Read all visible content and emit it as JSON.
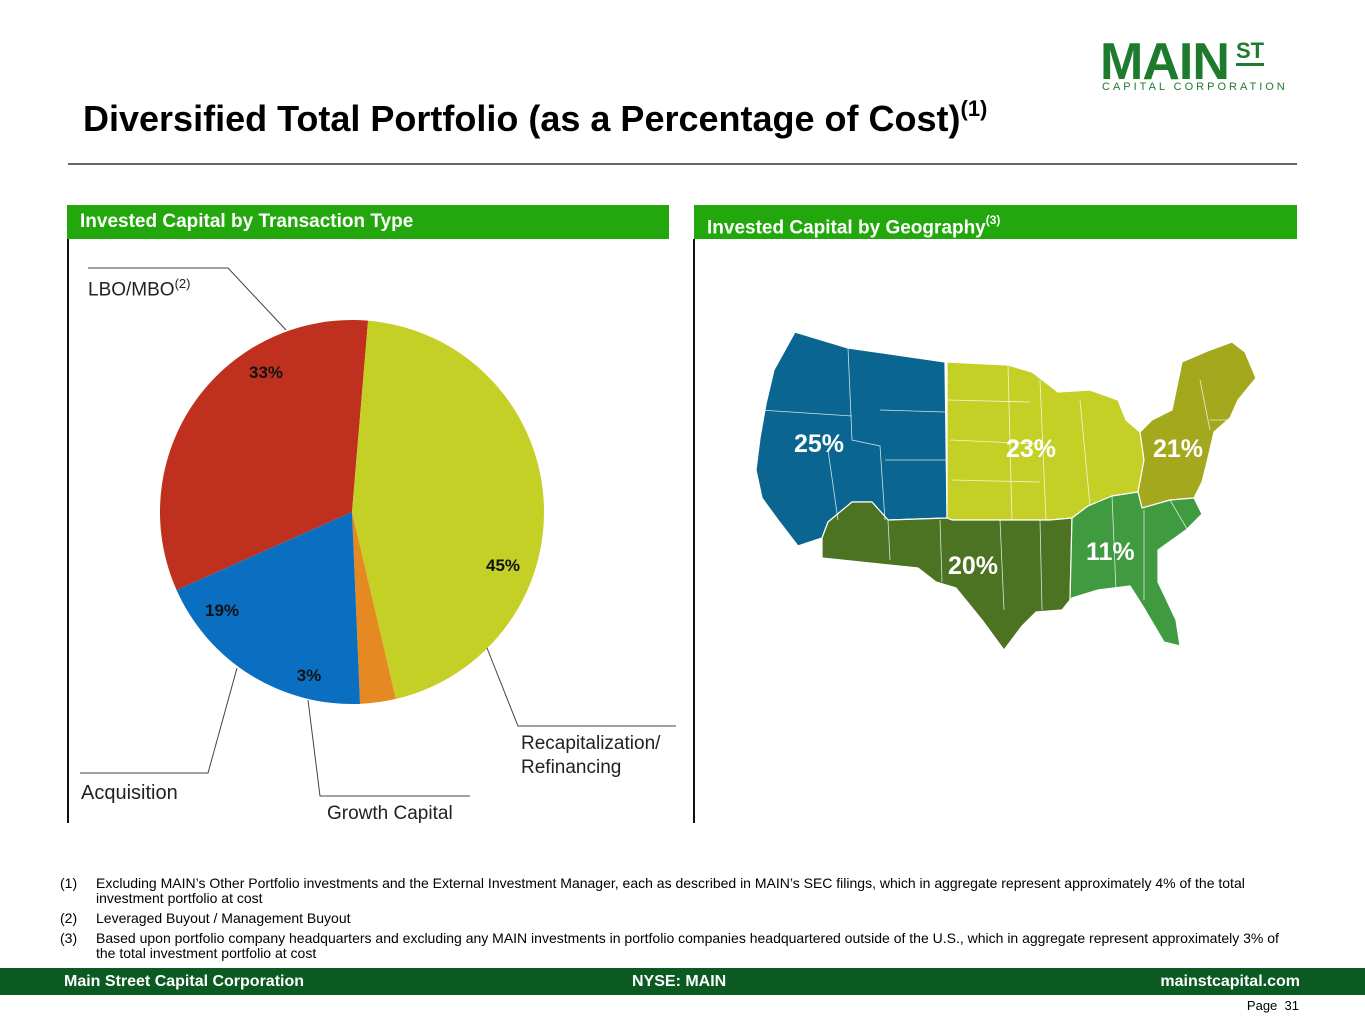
{
  "logo": {
    "main": "MAIN",
    "st": "ST",
    "sub": "CAPITAL CORPORATION"
  },
  "title": {
    "text": "Diversified Total Portfolio (as a Percentage of Cost)",
    "note": "(1)"
  },
  "left_section": {
    "heading": "Invested Capital by Transaction Type"
  },
  "right_section": {
    "heading": "Invested Capital by Geography",
    "note": "(3)"
  },
  "colors": {
    "header_green": "#22a80c",
    "footer_green": "#0b5a21",
    "lbo": "#bf311e",
    "recap": "#c4d026",
    "growth": "#e58a22",
    "acquisition": "#0a6fc1",
    "map_west": "#0a6690",
    "map_midwest": "#c4d026",
    "map_northeast": "#a3a81c",
    "map_south_central": "#4b7322",
    "map_southeast": "#3f9a40"
  },
  "chart_data": {
    "type": "pie",
    "title": "Invested Capital by Transaction Type",
    "slices": [
      {
        "label": "LBO/MBO",
        "label_note": "(2)",
        "value": 33,
        "value_label": "33%",
        "color": "#bf311e"
      },
      {
        "label": "Recapitalization/ Refinancing",
        "label_line1": "Recapitalization/",
        "label_line2": "Refinancing",
        "value": 45,
        "value_label": "45%",
        "color": "#c4d026"
      },
      {
        "label": "Growth Capital",
        "value": 3,
        "value_label": "3%",
        "color": "#e58a22"
      },
      {
        "label": "Acquisition",
        "value": 19,
        "value_label": "19%",
        "color": "#0a6fc1"
      }
    ]
  },
  "geography": {
    "regions": [
      {
        "name": "West",
        "value": 25,
        "label": "25%"
      },
      {
        "name": "Midwest",
        "value": 23,
        "label": "23%"
      },
      {
        "name": "Northeast",
        "value": 21,
        "label": "21%"
      },
      {
        "name": "Southwest",
        "value": 20,
        "label": "20%"
      },
      {
        "name": "Southeast",
        "value": 11,
        "label": "11%"
      }
    ]
  },
  "footnotes": [
    {
      "num": "(1)",
      "text": "Excluding MAIN’s Other Portfolio investments and the External Investment Manager, each as described in MAIN’s SEC filings, which in aggregate represent approximately 4% of the total investment portfolio at cost"
    },
    {
      "num": "(2)",
      "text": "Leveraged Buyout / Management Buyout"
    },
    {
      "num": "(3)",
      "text": "Based upon portfolio company headquarters and excluding any MAIN investments in portfolio companies headquartered outside of the U.S., which in aggregate represent approximately 3% of the total investment portfolio at cost"
    }
  ],
  "footer": {
    "company": "Main Street Capital Corporation",
    "ticker": "NYSE: MAIN",
    "website": "mainstcapital.com",
    "page_label": "Page",
    "page_number": "31"
  }
}
